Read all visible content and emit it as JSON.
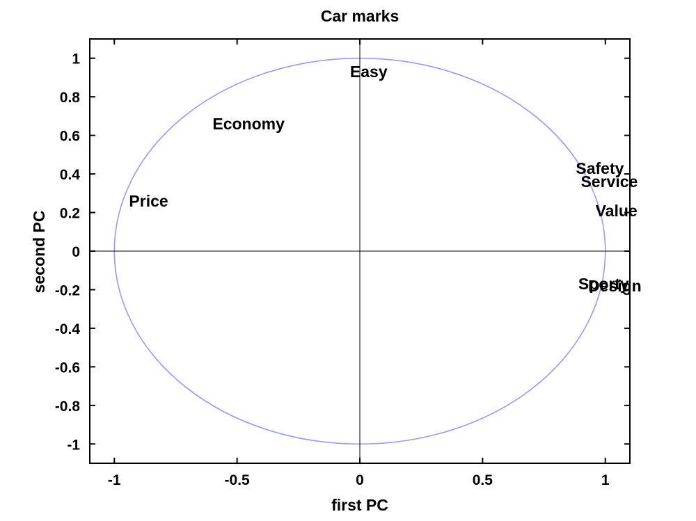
{
  "chart_data": {
    "type": "scatter",
    "title": "Car marks",
    "xlabel": "first PC",
    "ylabel": "second PC",
    "xlim": [
      -1.1,
      1.1
    ],
    "ylim": [
      -1.1,
      1.1
    ],
    "xticks": [
      -1,
      -0.5,
      0,
      0.5,
      1
    ],
    "xtick_labels": [
      "-1",
      "-0.5",
      "0",
      "0.5",
      "1"
    ],
    "yticks": [
      1,
      0.8,
      0.6,
      0.4,
      0.2,
      0,
      -0.2,
      -0.4,
      -0.6,
      -0.8,
      -1
    ],
    "ytick_labels": [
      "1",
      "0.8",
      "0.6",
      "0.4",
      "0.2",
      "0",
      "-0.2",
      "-0.4",
      "-0.6",
      "-0.8",
      "-1"
    ],
    "grid": false,
    "unit_circle": true,
    "circle_color": "#9999ee",
    "points": [
      {
        "label": "Easy",
        "x": -0.04,
        "y": 0.93
      },
      {
        "label": "Economy",
        "x": -0.6,
        "y": 0.66
      },
      {
        "label": "Price",
        "x": -0.94,
        "y": 0.26
      },
      {
        "label": "Safety",
        "x": 0.88,
        "y": 0.43
      },
      {
        "label": "Service",
        "x": 0.9,
        "y": 0.36
      },
      {
        "label": "Value",
        "x": 0.96,
        "y": 0.21
      },
      {
        "label": "Sporty",
        "x": 0.89,
        "y": -0.17
      },
      {
        "label": "Design",
        "x": 0.93,
        "y": -0.18
      }
    ]
  }
}
